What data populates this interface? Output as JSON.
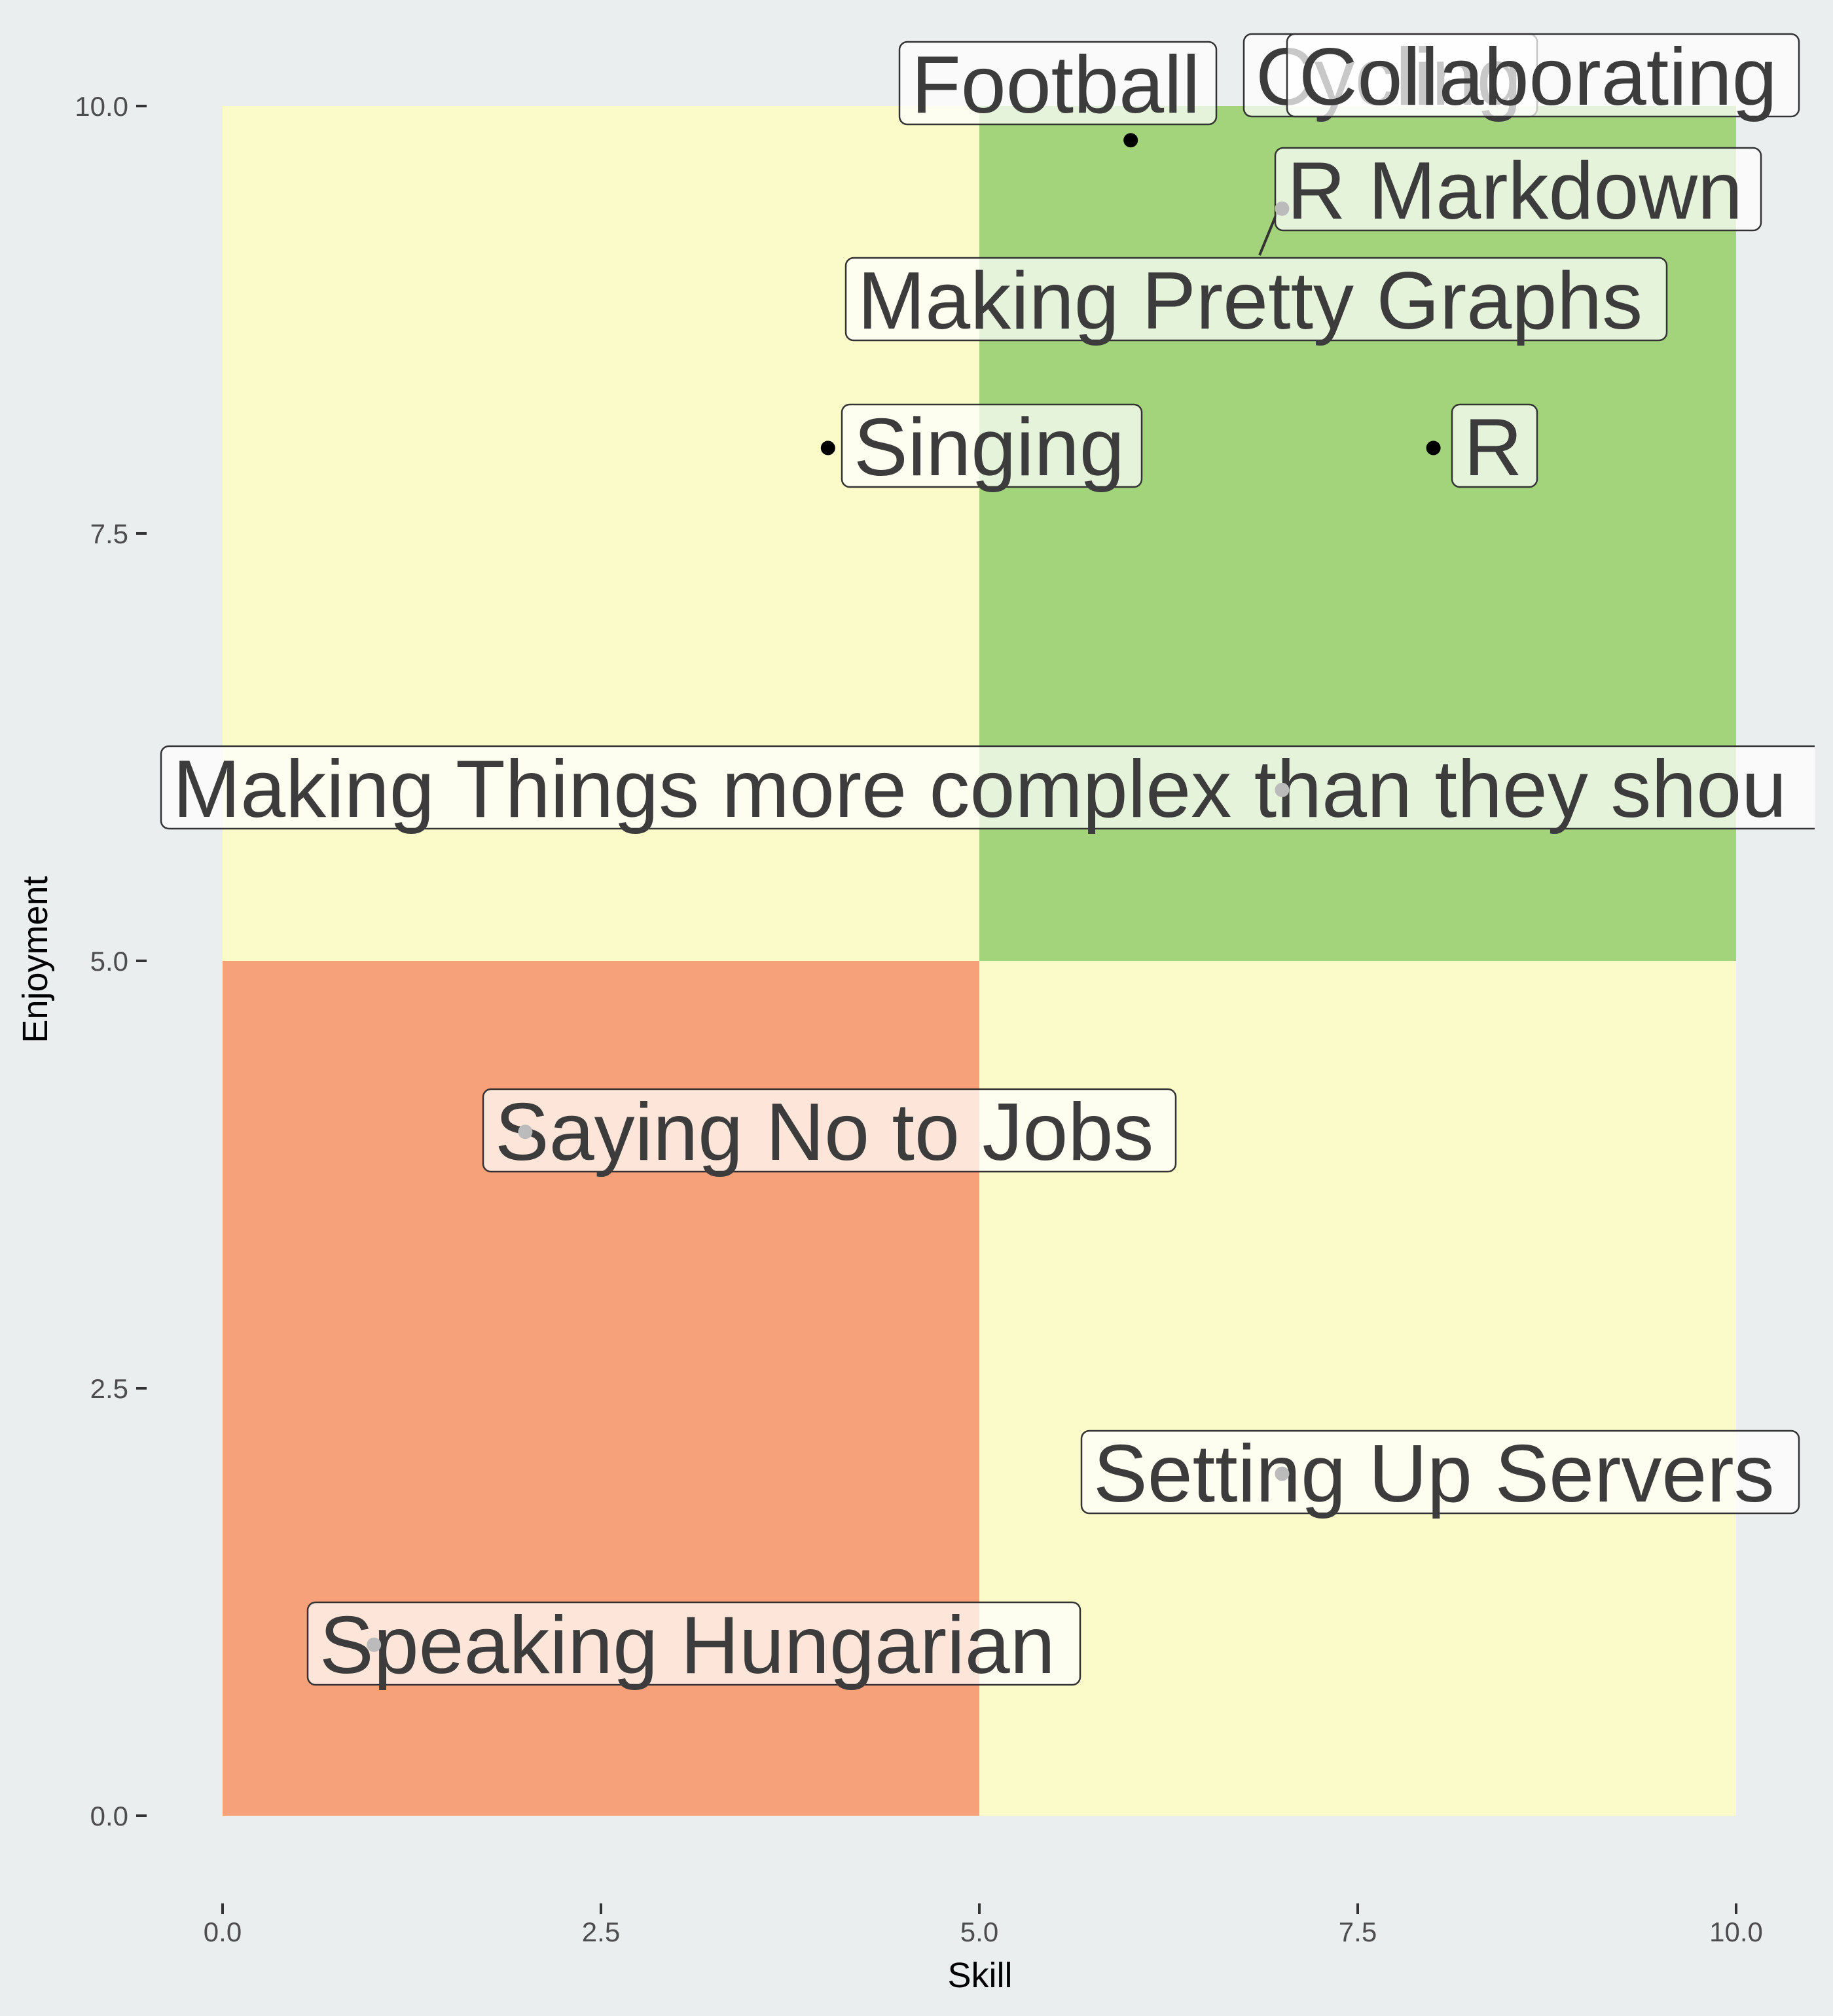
{
  "chart_data": {
    "type": "scatter",
    "title": "",
    "xlabel": "Skill",
    "ylabel": "Enjoyment",
    "xlim": [
      0,
      10
    ],
    "ylim": [
      0,
      10
    ],
    "x_ticks": [
      "0.0",
      "2.5",
      "5.0",
      "7.5",
      "10.0"
    ],
    "y_ticks": [
      "0.0",
      "2.5",
      "5.0",
      "7.5",
      "10.0"
    ],
    "grid": false,
    "legend": "none",
    "quadrants": [
      {
        "x": [
          0,
          5
        ],
        "y": [
          5,
          10
        ],
        "color": "#FBFBC9"
      },
      {
        "x": [
          5,
          10
        ],
        "y": [
          5,
          10
        ],
        "color": "#A3D47C"
      },
      {
        "x": [
          0,
          5
        ],
        "y": [
          0,
          5
        ],
        "color": "#F6A17A"
      },
      {
        "x": [
          5,
          10
        ],
        "y": [
          0,
          5
        ],
        "color": "#FBFBC9"
      }
    ],
    "points": [
      {
        "label": "Football",
        "x": 6.0,
        "y": 9.8
      },
      {
        "label": "Cycling",
        "x": 7.3,
        "y": 10.2
      },
      {
        "label": "Collaborating",
        "x": 8.2,
        "y": 10.2
      },
      {
        "label": "R Markdown",
        "x": 7.0,
        "y": 9.4
      },
      {
        "label": "Making Pretty Graphs",
        "x": 9.5,
        "y": 9.5
      },
      {
        "label": "Singing",
        "x": 4.0,
        "y": 8.0
      },
      {
        "label": "R",
        "x": 8.0,
        "y": 8.0
      },
      {
        "label": "Making Things more complex than they shou",
        "x": 7.0,
        "y": 6.0
      },
      {
        "label": "Saying No to Jobs",
        "x": 2.0,
        "y": 4.0
      },
      {
        "label": "Setting Up Servers",
        "x": 7.0,
        "y": 2.0
      },
      {
        "label": "Speaking Hungarian",
        "x": 1.0,
        "y": 1.0
      }
    ]
  }
}
